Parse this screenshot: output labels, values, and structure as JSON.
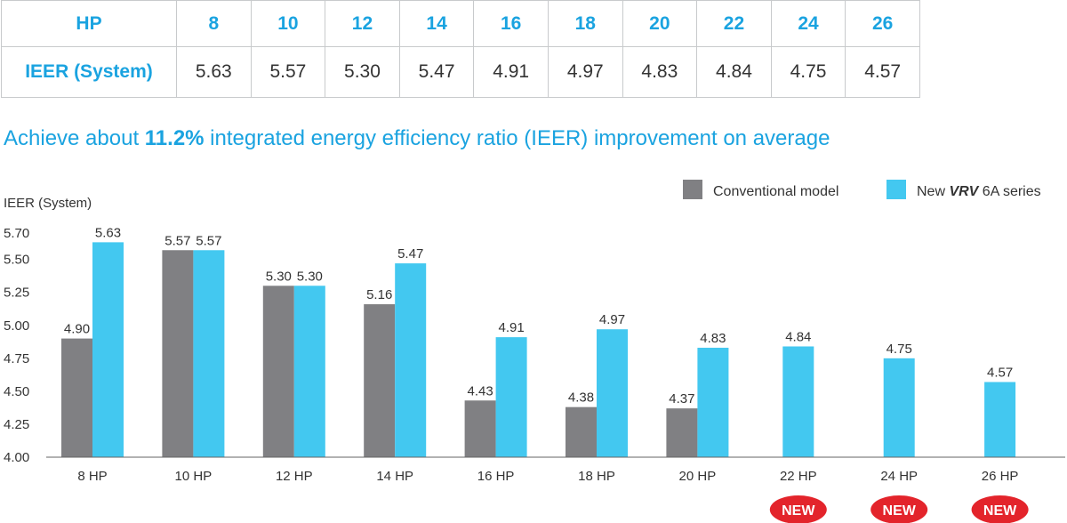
{
  "table": {
    "hp_label": "HP",
    "hp_values": [
      "8",
      "10",
      "12",
      "14",
      "16",
      "18",
      "20",
      "22",
      "24",
      "26"
    ],
    "ieer_label": "IEER (System)",
    "ieer_values": [
      "5.63",
      "5.57",
      "5.30",
      "5.47",
      "4.91",
      "4.97",
      "4.83",
      "4.84",
      "4.75",
      "4.57"
    ]
  },
  "headline": {
    "prefix": "Achieve about ",
    "highlight": "11.2%",
    "suffix": " integrated energy efficiency ratio (IEER) improvement on average"
  },
  "colors": {
    "conventional": "#808083",
    "new_series": "#43c8f0",
    "accent_text": "#1aa3e0",
    "new_badge": "#e3242b"
  },
  "chart_data": {
    "type": "bar",
    "ylabel": "IEER (System)",
    "ylim": [
      4.0,
      5.7
    ],
    "yticks": [
      "4.00",
      "4.25",
      "4.50",
      "4.75",
      "5.00",
      "5.25",
      "5.50",
      "5.70"
    ],
    "categories": [
      "8 HP",
      "10 HP",
      "12 HP",
      "14 HP",
      "16 HP",
      "18 HP",
      "20 HP",
      "22 HP",
      "24 HP",
      "26 HP"
    ],
    "series": [
      {
        "name": "Conventional model",
        "values": [
          4.9,
          5.57,
          5.3,
          5.16,
          4.43,
          4.38,
          4.37,
          null,
          null,
          null
        ]
      },
      {
        "name": "New VRV 6A series",
        "values": [
          5.63,
          5.57,
          5.3,
          5.47,
          4.91,
          4.97,
          4.83,
          4.84,
          4.75,
          4.57
        ]
      }
    ],
    "legend": {
      "placement": "top-right",
      "conventional_label": "Conventional model",
      "new_prefix": "New ",
      "new_brand": "VRV",
      "new_suffix": " 6A series"
    },
    "new_badge_label": "NEW",
    "new_badge_categories": [
      "22 HP",
      "24 HP",
      "26 HP"
    ],
    "grid": false
  }
}
